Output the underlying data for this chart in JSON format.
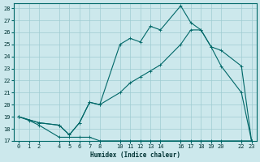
{
  "xlabel": "Humidex (Indice chaleur)",
  "background_color": "#cce8ec",
  "grid_color": "#9fccd2",
  "line_color": "#006868",
  "xlim": [
    -0.5,
    23.5
  ],
  "ylim": [
    17,
    28.4
  ],
  "x_ticks": [
    0,
    1,
    2,
    4,
    5,
    6,
    7,
    8,
    10,
    11,
    12,
    13,
    14,
    16,
    17,
    18,
    19,
    20,
    22,
    23
  ],
  "yticks": [
    17,
    18,
    19,
    20,
    21,
    22,
    23,
    24,
    25,
    26,
    27,
    28
  ],
  "line_min": {
    "x": [
      0,
      1,
      2,
      4,
      5,
      6,
      7,
      8,
      10,
      11,
      12,
      13,
      14,
      16,
      17,
      18,
      19,
      20,
      22,
      23
    ],
    "y": [
      19.0,
      18.7,
      18.3,
      17.3,
      17.3,
      17.3,
      17.3,
      17.0,
      17.0,
      17.0,
      17.0,
      17.0,
      17.0,
      17.0,
      17.0,
      17.0,
      17.0,
      17.0,
      17.0,
      17.0
    ]
  },
  "line_avg": {
    "x": [
      0,
      2,
      4,
      5,
      6,
      7,
      8,
      10,
      11,
      12,
      13,
      14,
      16,
      17,
      18,
      19,
      20,
      22,
      23
    ],
    "y": [
      19.0,
      18.5,
      18.3,
      17.5,
      18.5,
      20.2,
      20.0,
      21.0,
      21.8,
      22.3,
      22.8,
      23.3,
      25.0,
      26.2,
      26.2,
      24.8,
      23.2,
      21.0,
      17.0
    ]
  },
  "line_max": {
    "x": [
      0,
      2,
      4,
      5,
      6,
      7,
      8,
      10,
      11,
      12,
      13,
      14,
      16,
      17,
      18,
      19,
      20,
      22,
      23
    ],
    "y": [
      19.0,
      18.5,
      18.3,
      17.5,
      18.5,
      20.2,
      20.0,
      25.0,
      25.5,
      25.2,
      26.5,
      26.2,
      28.2,
      26.8,
      26.2,
      24.8,
      24.5,
      23.2,
      17.0
    ]
  }
}
